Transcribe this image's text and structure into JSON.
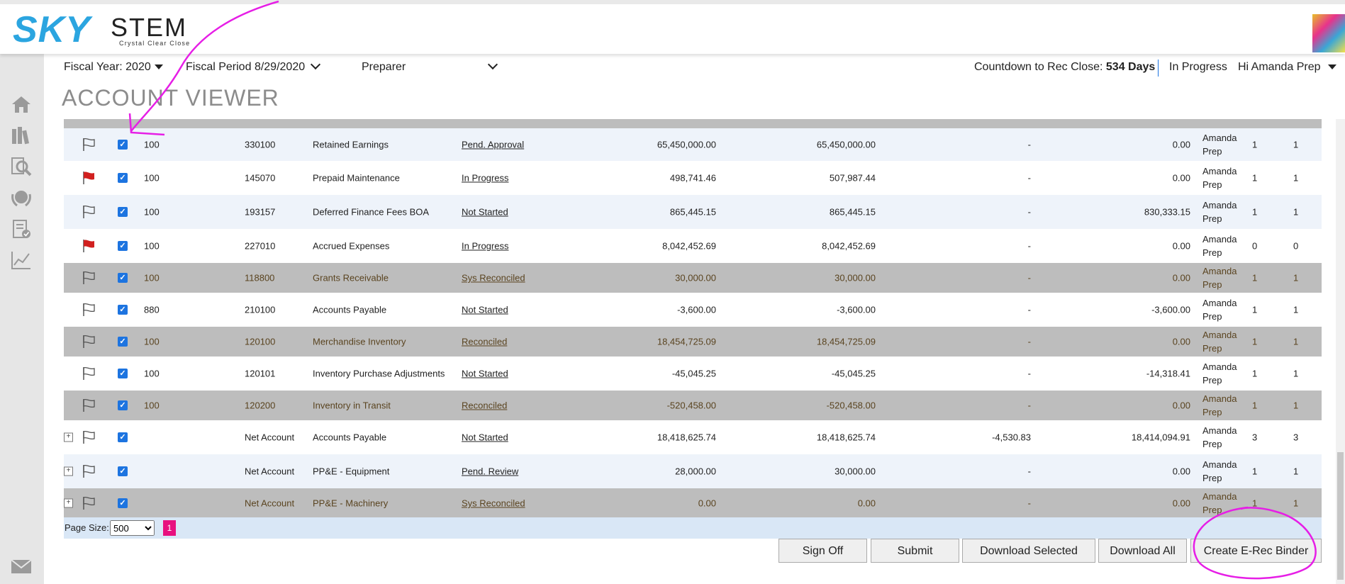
{
  "brand": {
    "logo_sky": "SKY",
    "logo_stem": "STEM",
    "tagline": "Crystal Clear Close"
  },
  "sidebar": {
    "icons": [
      "home-icon",
      "books-icon",
      "search-icon",
      "badge-icon",
      "report-check-icon",
      "line-chart-icon",
      "mail-icon"
    ]
  },
  "filters": {
    "fiscal_year_label": "Fiscal Year: 2020",
    "fiscal_period_label": "Fiscal Period",
    "fiscal_period_value": "8/29/2020",
    "role_value": "Preparer",
    "countdown_label": "Countdown to Rec Close:",
    "countdown_value": "534 Days",
    "status": "In Progress",
    "greeting": "Hi Amanda Prep"
  },
  "page_title": "ACCOUNT VIEWER",
  "rows": [
    {
      "style": "light",
      "flag": "outline",
      "plus": false,
      "company": "100",
      "account": "330100",
      "name": "Retained Earnings",
      "status": "Pend. Approval",
      "bal1": "65,450,000.00",
      "bal2": "65,450,000.00",
      "diff": "-",
      "unrec": "0.00",
      "prep1": "Amanda",
      "prep2": "Prep",
      "n1": "1",
      "n2": "1"
    },
    {
      "style": "white",
      "flag": "red",
      "plus": false,
      "company": "100",
      "account": "145070",
      "name": "Prepaid Maintenance",
      "status": "In Progress",
      "bal1": "498,741.46",
      "bal2": "507,987.44",
      "diff": "-",
      "unrec": "0.00",
      "prep1": "Amanda",
      "prep2": "Prep",
      "n1": "1",
      "n2": "1"
    },
    {
      "style": "light",
      "flag": "outline",
      "plus": false,
      "company": "100",
      "account": "193157",
      "name": "Deferred Finance Fees BOA",
      "status": "Not Started",
      "bal1": "865,445.15",
      "bal2": "865,445.15",
      "diff": "-",
      "unrec": "830,333.15",
      "prep1": "Amanda",
      "prep2": "Prep",
      "n1": "1",
      "n2": "1"
    },
    {
      "style": "white",
      "flag": "red",
      "plus": false,
      "company": "100",
      "account": "227010",
      "name": "Accrued Expenses",
      "status": "In Progress",
      "bal1": "8,042,452.69",
      "bal2": "8,042,452.69",
      "diff": "-",
      "unrec": "0.00",
      "prep1": "Amanda",
      "prep2": "Prep",
      "n1": "0",
      "n2": "0"
    },
    {
      "style": "gray",
      "flag": "outline",
      "plus": false,
      "company": "100",
      "account": "118800",
      "name": "Grants Receivable",
      "status": "Sys Reconciled",
      "bal1": "30,000.00",
      "bal2": "30,000.00",
      "diff": "-",
      "unrec": "0.00",
      "prep1": "Amanda",
      "prep2": "Prep",
      "n1": "1",
      "n2": "1"
    },
    {
      "style": "white",
      "flag": "outline",
      "plus": false,
      "company": "880",
      "account": "210100",
      "name": "Accounts Payable",
      "status": "Not Started",
      "bal1": "-3,600.00",
      "bal2": "-3,600.00",
      "diff": "-",
      "unrec": "-3,600.00",
      "prep1": "Amanda",
      "prep2": "Prep",
      "n1": "1",
      "n2": "1"
    },
    {
      "style": "gray",
      "flag": "outline",
      "plus": false,
      "company": "100",
      "account": "120100",
      "name": "Merchandise Inventory",
      "status": "Reconciled",
      "bal1": "18,454,725.09",
      "bal2": "18,454,725.09",
      "diff": "-",
      "unrec": "0.00",
      "prep1": "Amanda",
      "prep2": "Prep",
      "n1": "1",
      "n2": "1"
    },
    {
      "style": "white",
      "flag": "outline",
      "plus": false,
      "company": "100",
      "account": "120101",
      "name": "Inventory Purchase Adjustments",
      "status": "Not Started",
      "bal1": "-45,045.25",
      "bal2": "-45,045.25",
      "diff": "-",
      "unrec": "-14,318.41",
      "prep1": "Amanda",
      "prep2": "Prep",
      "n1": "1",
      "n2": "1"
    },
    {
      "style": "gray",
      "flag": "outline",
      "plus": false,
      "company": "100",
      "account": "120200",
      "name": "Inventory in Transit",
      "status": "Reconciled",
      "bal1": "-520,458.00",
      "bal2": "-520,458.00",
      "diff": "-",
      "unrec": "0.00",
      "prep1": "Amanda",
      "prep2": "Prep",
      "n1": "1",
      "n2": "1"
    },
    {
      "style": "white",
      "flag": "outline",
      "plus": true,
      "company": "",
      "account": "Net Account",
      "name": "Accounts Payable",
      "status": "Not Started",
      "bal1": "18,418,625.74",
      "bal2": "18,418,625.74",
      "diff": "-4,530.83",
      "unrec": "18,414,094.91",
      "prep1": "Amanda",
      "prep2": "Prep",
      "n1": "3",
      "n2": "3"
    },
    {
      "style": "light",
      "flag": "outline",
      "plus": true,
      "company": "",
      "account": "Net Account",
      "name": "PP&E - Equipment",
      "status": "Pend. Review",
      "bal1": "28,000.00",
      "bal2": "30,000.00",
      "diff": "-",
      "unrec": "0.00",
      "prep1": "Amanda",
      "prep2": "Prep",
      "n1": "1",
      "n2": "1"
    },
    {
      "style": "gray",
      "flag": "outline",
      "plus": true,
      "company": "",
      "account": "Net Account",
      "name": "PP&E - Machinery",
      "status": "Sys Reconciled",
      "bal1": "0.00",
      "bal2": "0.00",
      "diff": "-",
      "unrec": "0.00",
      "prep1": "Amanda",
      "prep2": "Prep",
      "n1": "1",
      "n2": "1"
    }
  ],
  "pager": {
    "label": "Page Size:",
    "size": "500",
    "current_page": "1"
  },
  "buttons": {
    "sign_off": "Sign Off",
    "submit": "Submit",
    "download_selected": "Download Selected",
    "download_all": "Download All",
    "create_binder": "Create E-Rec Binder"
  },
  "checkmark": "✓",
  "plus_glyph": "+"
}
